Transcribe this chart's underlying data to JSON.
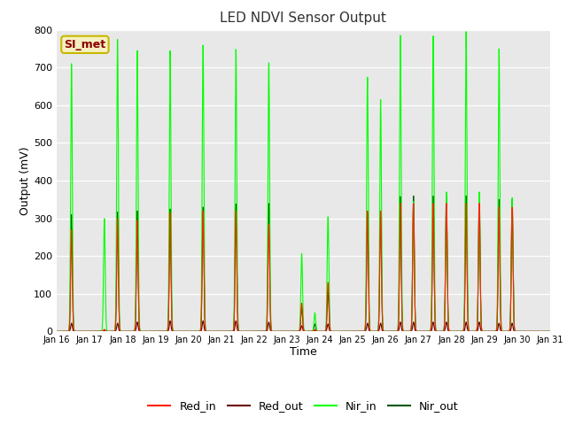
{
  "title": "LED NDVI Sensor Output",
  "xlabel": "Time",
  "ylabel": "Output (mV)",
  "ylim": [
    0,
    800
  ],
  "xlim": [
    0,
    15
  ],
  "fig_bg": "#ffffff",
  "plot_bg": "#e8e8e8",
  "legend_label": "SI_met",
  "legend_box_bg": "#f5f0c0",
  "legend_box_border": "#c8b800",
  "legend_text_color": "#8b0000",
  "series": {
    "Red_in": {
      "color": "#ff2200",
      "lw": 0.8
    },
    "Red_out": {
      "color": "#6b0000",
      "lw": 0.8
    },
    "Nir_in": {
      "color": "#00ff00",
      "lw": 0.8
    },
    "Nir_out": {
      "color": "#005500",
      "lw": 0.8
    }
  },
  "xtick_labels": [
    "Jan 16",
    "Jan 17",
    "Jan 18",
    "Jan 19",
    "Jan 20",
    "Jan 21",
    "Jan 22",
    "Jan 23",
    "Jan 24",
    "Jan 25",
    "Jan 26",
    "Jan 27",
    "Jan 28",
    "Jan 29",
    "Jan 30",
    "Jan 31"
  ],
  "spike_days": [
    0.45,
    1.45,
    1.85,
    2.45,
    3.45,
    4.45,
    5.45,
    6.45,
    7.45,
    7.85,
    8.25,
    8.65,
    9.45,
    9.85,
    10.45,
    10.85,
    11.45,
    11.85,
    12.45,
    12.85,
    13.45,
    13.85
  ],
  "nir_in_peaks": [
    710,
    300,
    775,
    745,
    745,
    760,
    748,
    714,
    207,
    50,
    305,
    0,
    675,
    615,
    785,
    345,
    785,
    370,
    795,
    370,
    750,
    355
  ],
  "nir_out_peaks": [
    310,
    5,
    317,
    320,
    325,
    330,
    338,
    340,
    65,
    20,
    107,
    0,
    315,
    315,
    358,
    360,
    360,
    360,
    360,
    360,
    350,
    350
  ],
  "red_in_peaks": [
    270,
    5,
    300,
    295,
    315,
    320,
    320,
    285,
    75,
    5,
    130,
    0,
    320,
    320,
    340,
    340,
    340,
    340,
    340,
    340,
    330,
    330
  ],
  "red_out_peaks": [
    22,
    2,
    22,
    25,
    28,
    28,
    28,
    25,
    15,
    2,
    20,
    0,
    22,
    22,
    25,
    25,
    25,
    25,
    25,
    25,
    22,
    22
  ]
}
